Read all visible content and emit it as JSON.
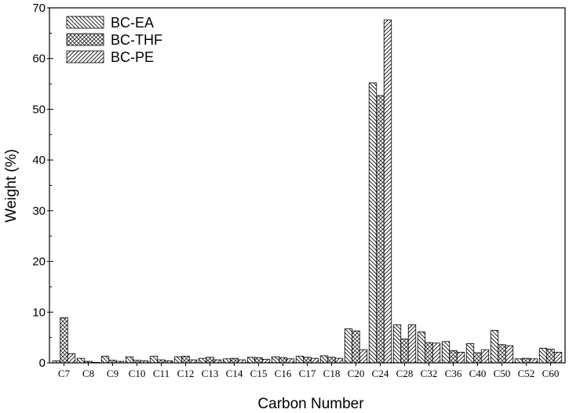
{
  "chart_data": {
    "type": "bar",
    "title": "",
    "xlabel": "Carbon Number",
    "ylabel": "Weight (%)",
    "ylim": [
      0,
      70
    ],
    "yticks": [
      0,
      10,
      20,
      30,
      40,
      50,
      60,
      70
    ],
    "legend_position": "top-left",
    "grid": false,
    "categories": [
      "C7",
      "C8",
      "C9",
      "C10",
      "C11",
      "C12",
      "C13",
      "C14",
      "C15",
      "C16",
      "C17",
      "C18",
      "C20",
      "C24",
      "C28",
      "C32",
      "C36",
      "C40",
      "C50",
      "C52",
      "C60"
    ],
    "series": [
      {
        "name": "BC-EA",
        "pattern": "back-diagonal",
        "values": [
          0.4,
          0.9,
          1.3,
          1.2,
          1.3,
          1.2,
          0.9,
          0.8,
          1.1,
          1.2,
          1.3,
          1.4,
          6.7,
          55.2,
          7.5,
          6.1,
          4.2,
          3.8,
          6.4,
          0.8,
          2.9
        ]
      },
      {
        "name": "BC-THF",
        "pattern": "crosshatch",
        "values": [
          8.9,
          0.3,
          0.5,
          0.5,
          0.6,
          1.3,
          1.1,
          0.9,
          1.0,
          1.0,
          1.1,
          1.1,
          6.3,
          52.7,
          4.7,
          4.0,
          2.4,
          2.0,
          3.6,
          0.9,
          2.7
        ]
      },
      {
        "name": "BC-PE",
        "pattern": "diagonal",
        "values": [
          1.8,
          0.1,
          0.3,
          0.4,
          0.4,
          0.6,
          0.6,
          0.6,
          0.7,
          0.8,
          0.9,
          0.9,
          2.6,
          67.6,
          7.5,
          3.9,
          2.1,
          2.6,
          3.4,
          0.8,
          2.1
        ]
      }
    ]
  }
}
